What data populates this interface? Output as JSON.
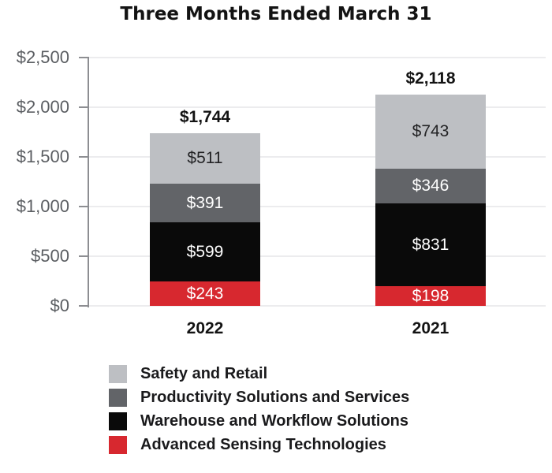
{
  "chart_data": {
    "type": "bar",
    "stacked": true,
    "title": "Three Months Ended March 31",
    "categories": [
      "2022",
      "2021"
    ],
    "series": [
      {
        "name": "Advanced Sensing Technologies",
        "color": "#d7282f",
        "label_color": "#ffffff",
        "values": [
          243,
          198
        ],
        "labels": [
          "$243",
          "$198"
        ]
      },
      {
        "name": "Warehouse and Workflow Solutions",
        "color": "#0a0a0a",
        "label_color": "#ffffff",
        "values": [
          599,
          831
        ],
        "labels": [
          "$599",
          "$831"
        ]
      },
      {
        "name": "Productivity Solutions and Services",
        "color": "#626468",
        "label_color": "#ffffff",
        "values": [
          391,
          346
        ],
        "labels": [
          "$391",
          "$346"
        ]
      },
      {
        "name": "Safety and Retail",
        "color": "#bdbfc3",
        "label_color": "#232325",
        "values": [
          511,
          743
        ],
        "labels": [
          "$511",
          "$743"
        ]
      }
    ],
    "totals": [
      1744,
      2118
    ],
    "total_labels": [
      "$1,744",
      "$2,118"
    ],
    "y_axis": {
      "ylim": [
        0,
        2500
      ],
      "ticks": [
        2500,
        2000,
        1500,
        1000,
        500,
        0
      ],
      "tick_labels": [
        "$2,500",
        "$2,000",
        "$1,500",
        "$1,000",
        "$500",
        "$0"
      ],
      "grid": true
    },
    "legend": {
      "position": "bottom-left",
      "items": [
        {
          "label": "Safety and Retail",
          "color": "#bdbfc3"
        },
        {
          "label": "Productivity Solutions and Services",
          "color": "#626468"
        },
        {
          "label": "Warehouse and Workflow Solutions",
          "color": "#0a0a0a"
        },
        {
          "label": "Advanced Sensing Technologies",
          "color": "#d7282f"
        }
      ]
    }
  }
}
